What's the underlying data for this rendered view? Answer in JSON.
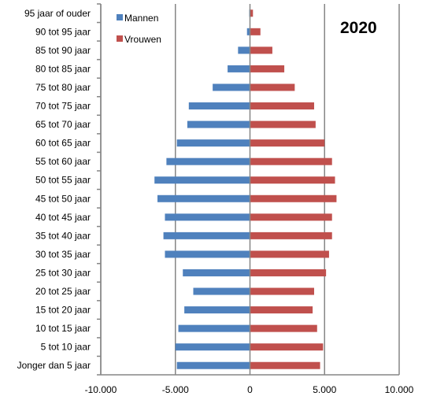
{
  "chart_data": {
    "type": "bar",
    "orientation": "horizontal",
    "title": "2020",
    "categories": [
      "Jonger dan 5 jaar",
      "5 tot 10 jaar",
      "10 tot 15 jaar",
      "15 tot 20 jaar",
      "20 tot 25 jaar",
      "25 tot 30 jaar",
      "30 tot 35 jaar",
      "35 tot 40 jaar",
      "40 tot 45 jaar",
      "45 tot 50 jaar",
      "50 tot 55 jaar",
      "55 tot 60 jaar",
      "60 tot 65 jaar",
      "65 tot 70 jaar",
      "70 tot 75 jaar",
      "75 tot 80 jaar",
      "80 tot 85 jaar",
      "85 tot 90 jaar",
      "90 tot 95 jaar",
      "95 jaar of ouder"
    ],
    "series": [
      {
        "name": "Mannen",
        "color": "#4f81bd",
        "values": [
          -4900,
          -5000,
          -4800,
          -4400,
          -3800,
          -4500,
          -5700,
          -5800,
          -5700,
          -6200,
          -6400,
          -5600,
          -4900,
          -4200,
          -4100,
          -2500,
          -1500,
          -800,
          -200,
          -50
        ]
      },
      {
        "name": "Vrouwen",
        "color": "#c0504d",
        "values": [
          4700,
          4900,
          4500,
          4200,
          4300,
          5100,
          5300,
          5500,
          5500,
          5800,
          5700,
          5500,
          5000,
          4400,
          4300,
          3000,
          2300,
          1500,
          700,
          200
        ]
      }
    ],
    "xlim": [
      -10000,
      10000
    ],
    "xticks": [
      -10000,
      -5000,
      0,
      5000,
      10000
    ],
    "xtick_labels": [
      "-10.000",
      "-5.000",
      "0",
      "5.000",
      "10.000"
    ],
    "grid": "vertical major gridlines",
    "legend_position": "top-left"
  }
}
